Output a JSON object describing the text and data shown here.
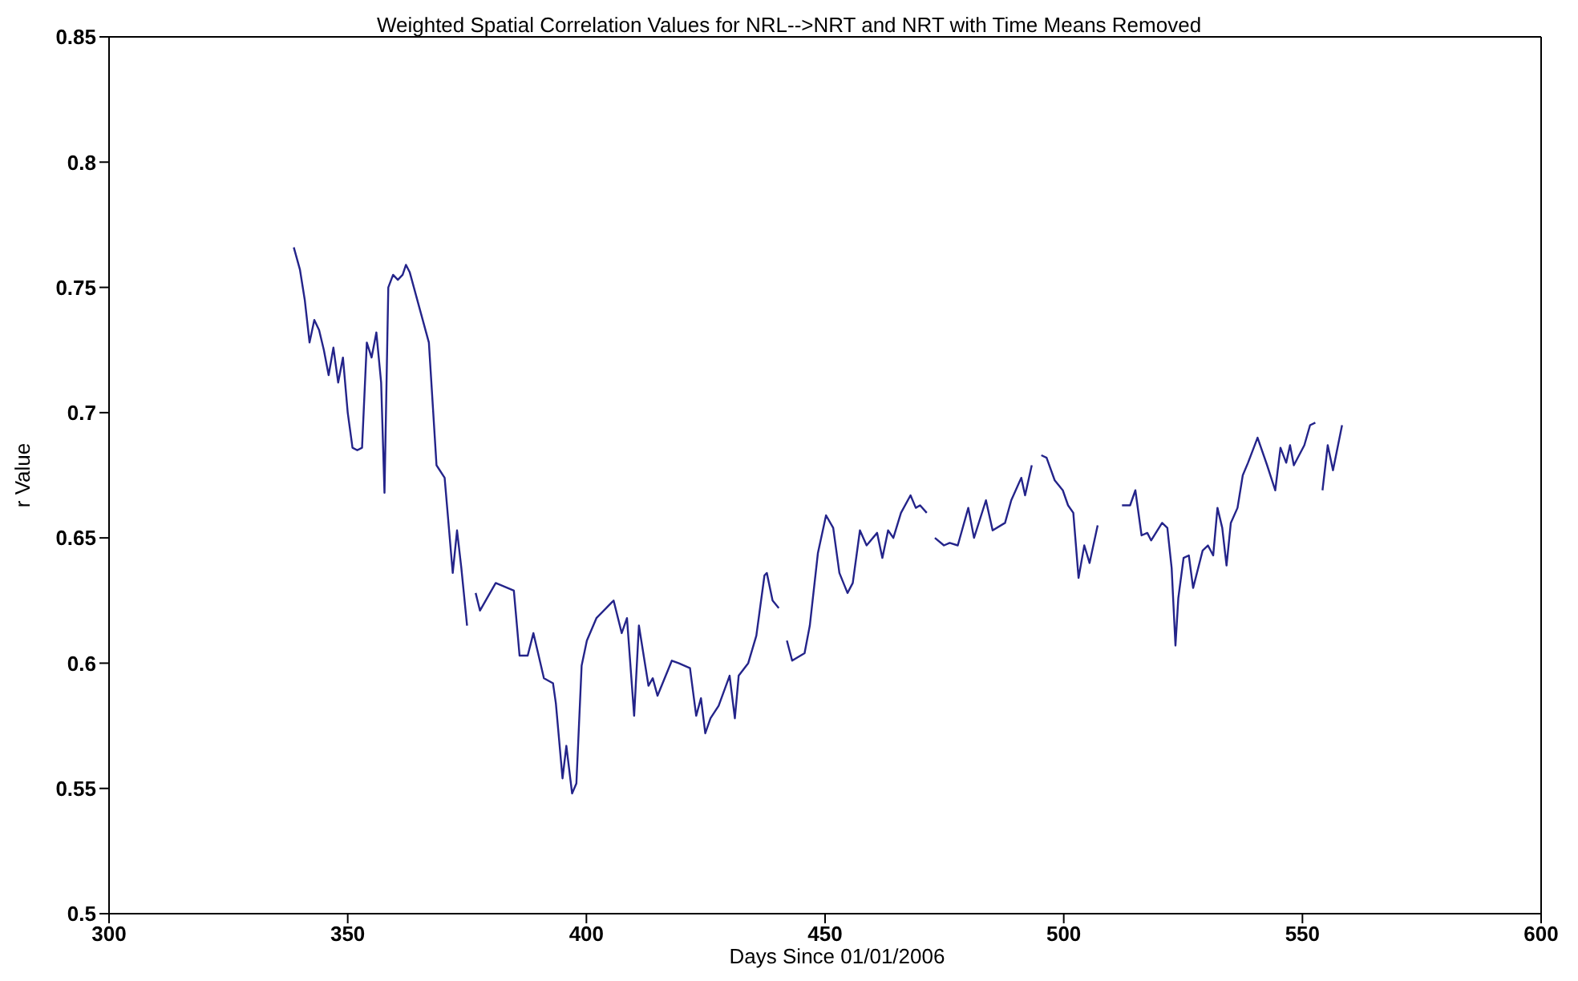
{
  "chart_data": {
    "type": "line",
    "title": "Weighted Spatial Correlation Values for NRL-->NRT and NRT with Time Means Removed",
    "xlabel": "Days Since 01/01/2006",
    "ylabel": "r Value",
    "xlim": [
      300,
      600
    ],
    "xticks": [
      300,
      350,
      400,
      450,
      500,
      550,
      600
    ],
    "ylim": [
      0.5,
      0.85
    ],
    "yticks": [
      0.5,
      0.55,
      0.6,
      0.65,
      0.7,
      0.75,
      0.8,
      0.85
    ],
    "grid": false,
    "legend": false,
    "marker": "none",
    "line_style": "solid",
    "series": [
      {
        "color": "#24248a",
        "x": [
          338.7,
          340,
          341,
          342,
          343,
          344,
          345,
          346,
          347,
          348,
          349,
          350,
          351,
          352,
          353,
          354,
          355,
          356,
          357,
          357.7,
          358.5,
          359.5,
          360.5,
          361.5,
          362.2,
          363,
          365,
          367,
          368.6,
          370.3,
          372,
          372.9,
          373.8,
          375,
          376,
          376.8,
          377.7,
          381,
          384.8,
          386,
          387.7,
          388.9,
          391.1,
          393,
          393.6,
          395,
          395.8,
          397,
          397.9,
          399,
          400.1,
          402.1,
          405.7,
          407.4,
          408.5,
          410,
          411,
          413,
          413.9,
          414.9,
          417.9,
          419.3,
          421.7,
          423,
          424,
          424.9,
          426,
          427.7,
          430,
          431.1,
          431.9,
          433.9,
          435.6,
          437.3,
          437.8,
          439,
          440.3,
          441.2,
          442,
          443.1,
          445.7,
          446.8,
          448.5,
          450.2,
          451.7,
          453,
          454.7,
          455.8,
          457.3,
          458.7,
          460.9,
          462,
          463.2,
          464.3,
          465.9,
          467.9,
          469,
          469.9,
          471.3,
          472.2,
          473,
          474.9,
          476.1,
          477.8,
          480,
          481.2,
          483.7,
          485.1,
          487.7,
          489,
          491.1,
          491.9,
          493.3,
          494.3,
          495.3,
          496.4,
          498.1,
          499.8,
          500.9,
          502,
          503.1,
          504.3,
          505.4,
          507.1,
          509.5,
          512.2,
          513.9,
          515,
          516.3,
          517.5,
          518.3,
          520.6,
          521.7,
          522.6,
          523.4,
          524,
          525.1,
          526.2,
          527.1,
          529.1,
          530.2,
          531.3,
          532.2,
          533.2,
          534.1,
          535,
          536.4,
          537.5,
          538.6,
          540.6,
          542.6,
          544.3,
          545.4,
          546.6,
          547.4,
          548.2,
          550.4,
          551.6,
          552.7,
          553.4,
          554.2,
          555.3,
          556.4,
          558.3
        ],
        "values": [
          0.766,
          0.757,
          0.745,
          0.728,
          0.737,
          0.733,
          0.725,
          0.715,
          0.726,
          0.712,
          0.722,
          0.7,
          0.686,
          0.685,
          0.686,
          0.728,
          0.722,
          0.732,
          0.712,
          0.668,
          0.75,
          0.755,
          0.753,
          0.755,
          0.759,
          0.756,
          0.742,
          0.728,
          0.679,
          0.674,
          0.636,
          0.653,
          0.638,
          0.615,
          null,
          0.628,
          0.621,
          0.632,
          0.629,
          0.603,
          0.603,
          0.612,
          0.594,
          0.592,
          0.584,
          0.554,
          0.567,
          0.548,
          0.552,
          0.599,
          0.609,
          0.618,
          0.625,
          0.612,
          0.618,
          0.579,
          0.615,
          0.591,
          0.594,
          0.587,
          0.601,
          0.6,
          0.598,
          0.579,
          0.586,
          0.572,
          0.578,
          0.583,
          0.595,
          0.578,
          0.595,
          0.6,
          0.611,
          0.635,
          0.636,
          0.625,
          0.622,
          null,
          0.609,
          0.601,
          0.604,
          0.615,
          0.644,
          0.659,
          0.654,
          0.636,
          0.628,
          0.632,
          0.653,
          0.647,
          0.652,
          0.642,
          0.653,
          0.65,
          0.66,
          0.667,
          0.662,
          0.663,
          0.66,
          null,
          0.65,
          0.647,
          0.648,
          0.647,
          0.662,
          0.65,
          0.665,
          0.653,
          0.656,
          0.665,
          0.674,
          0.667,
          0.679,
          null,
          0.683,
          0.682,
          0.673,
          0.669,
          0.663,
          0.66,
          0.634,
          0.647,
          0.64,
          0.655,
          null,
          0.663,
          0.663,
          0.669,
          0.651,
          0.652,
          0.649,
          0.656,
          0.654,
          0.638,
          0.607,
          0.626,
          0.642,
          0.643,
          0.63,
          0.645,
          0.647,
          0.643,
          0.662,
          0.654,
          0.639,
          0.656,
          0.662,
          0.675,
          0.68,
          0.69,
          0.679,
          0.669,
          0.686,
          0.68,
          0.687,
          0.679,
          0.687,
          0.695,
          0.696,
          null,
          0.669,
          0.687,
          0.677,
          0.695
        ]
      }
    ]
  }
}
